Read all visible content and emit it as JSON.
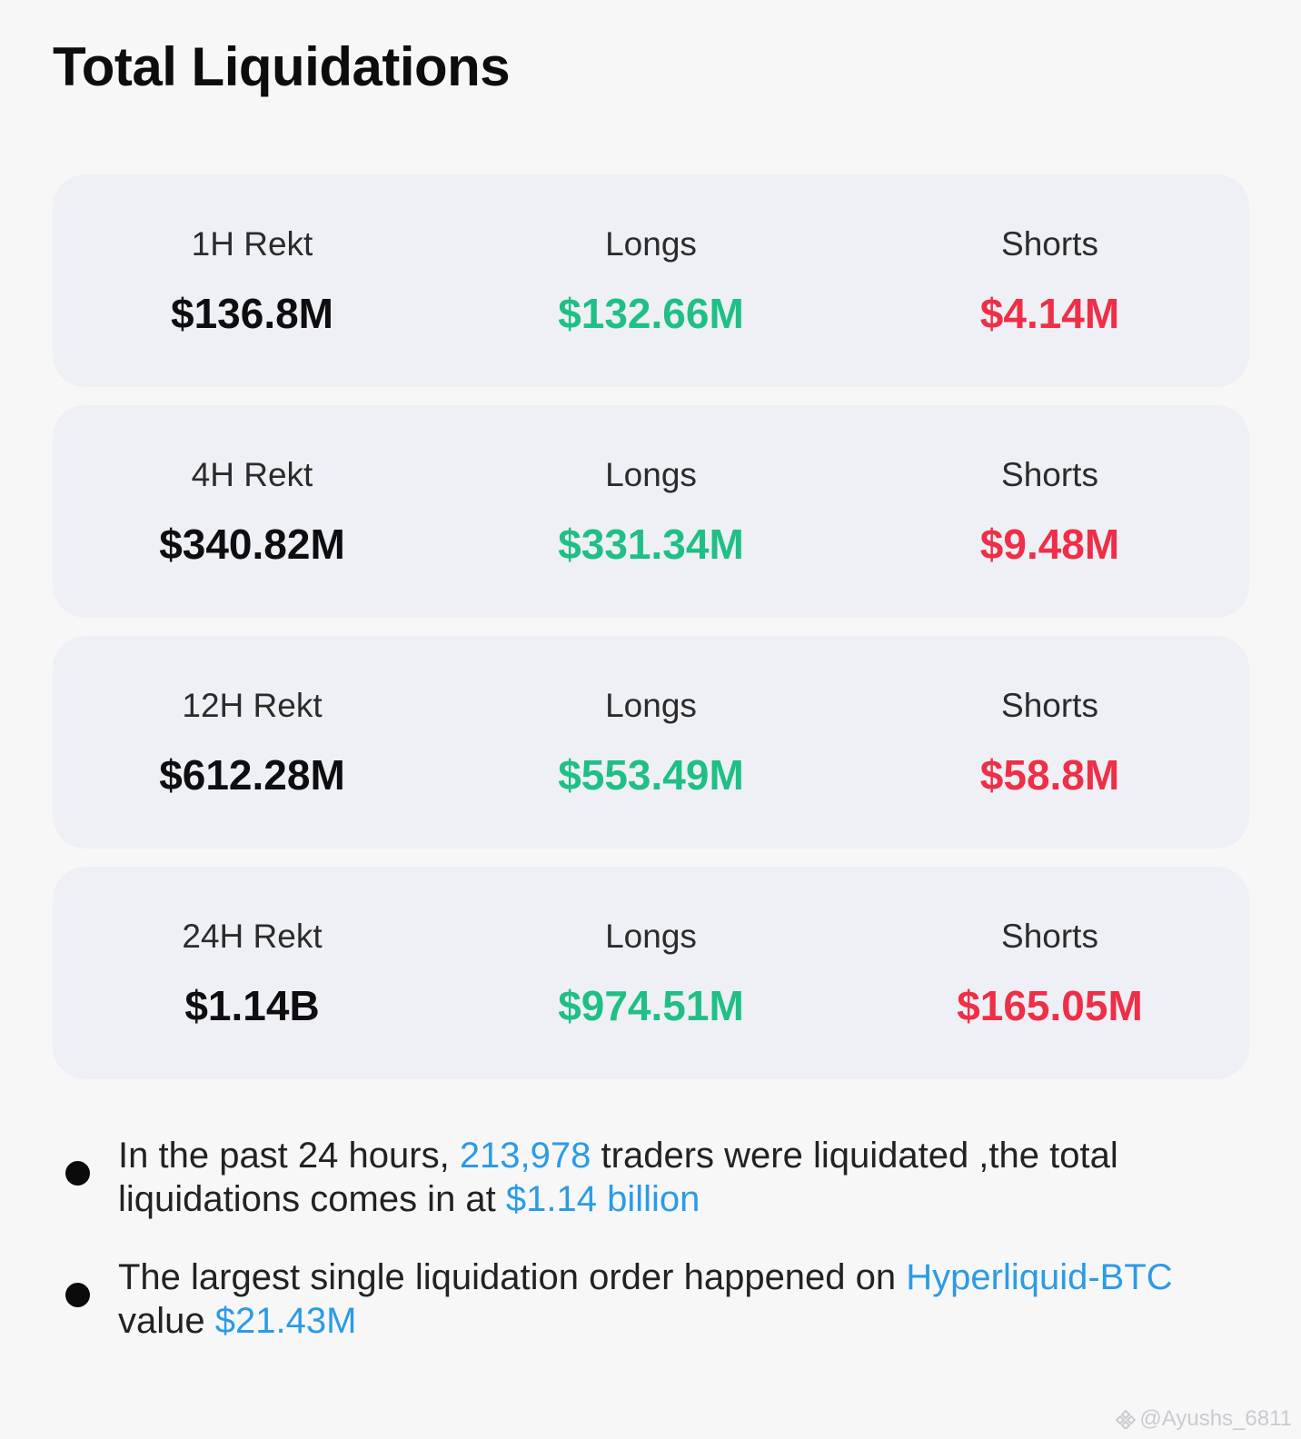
{
  "title": "Total Liquidations",
  "rows": [
    {
      "period_label": "1H Rekt",
      "total": "$136.8M",
      "longs_label": "Longs",
      "longs": "$132.66M",
      "shorts_label": "Shorts",
      "shorts": "$4.14M"
    },
    {
      "period_label": "4H Rekt",
      "total": "$340.82M",
      "longs_label": "Longs",
      "longs": "$331.34M",
      "shorts_label": "Shorts",
      "shorts": "$9.48M"
    },
    {
      "period_label": "12H Rekt",
      "total": "$612.28M",
      "longs_label": "Longs",
      "longs": "$553.49M",
      "shorts_label": "Shorts",
      "shorts": "$58.8M"
    },
    {
      "period_label": "24H Rekt",
      "total": "$1.14B",
      "longs_label": "Longs",
      "longs": "$974.51M",
      "shorts_label": "Shorts",
      "shorts": "$165.05M"
    }
  ],
  "notes": [
    {
      "part1": "In the past 24 hours, ",
      "traders": "213,978",
      "part2": " traders were liquidated ,the total liquidations comes in at ",
      "amount": "$1.14 billion"
    },
    {
      "part1": "The largest single liquidation order happened on ",
      "exchange": "Hyperliquid-BTC",
      "part2": " value ",
      "amount": "$21.43M"
    }
  ],
  "watermark": "@Ayushs_6811",
  "colors": {
    "long": "#1fbf86",
    "short": "#ee2f47",
    "highlight": "#2b9be6",
    "card": "#eef0f5"
  },
  "icons": [
    "bullet-dot",
    "watermark-logo-icon"
  ]
}
